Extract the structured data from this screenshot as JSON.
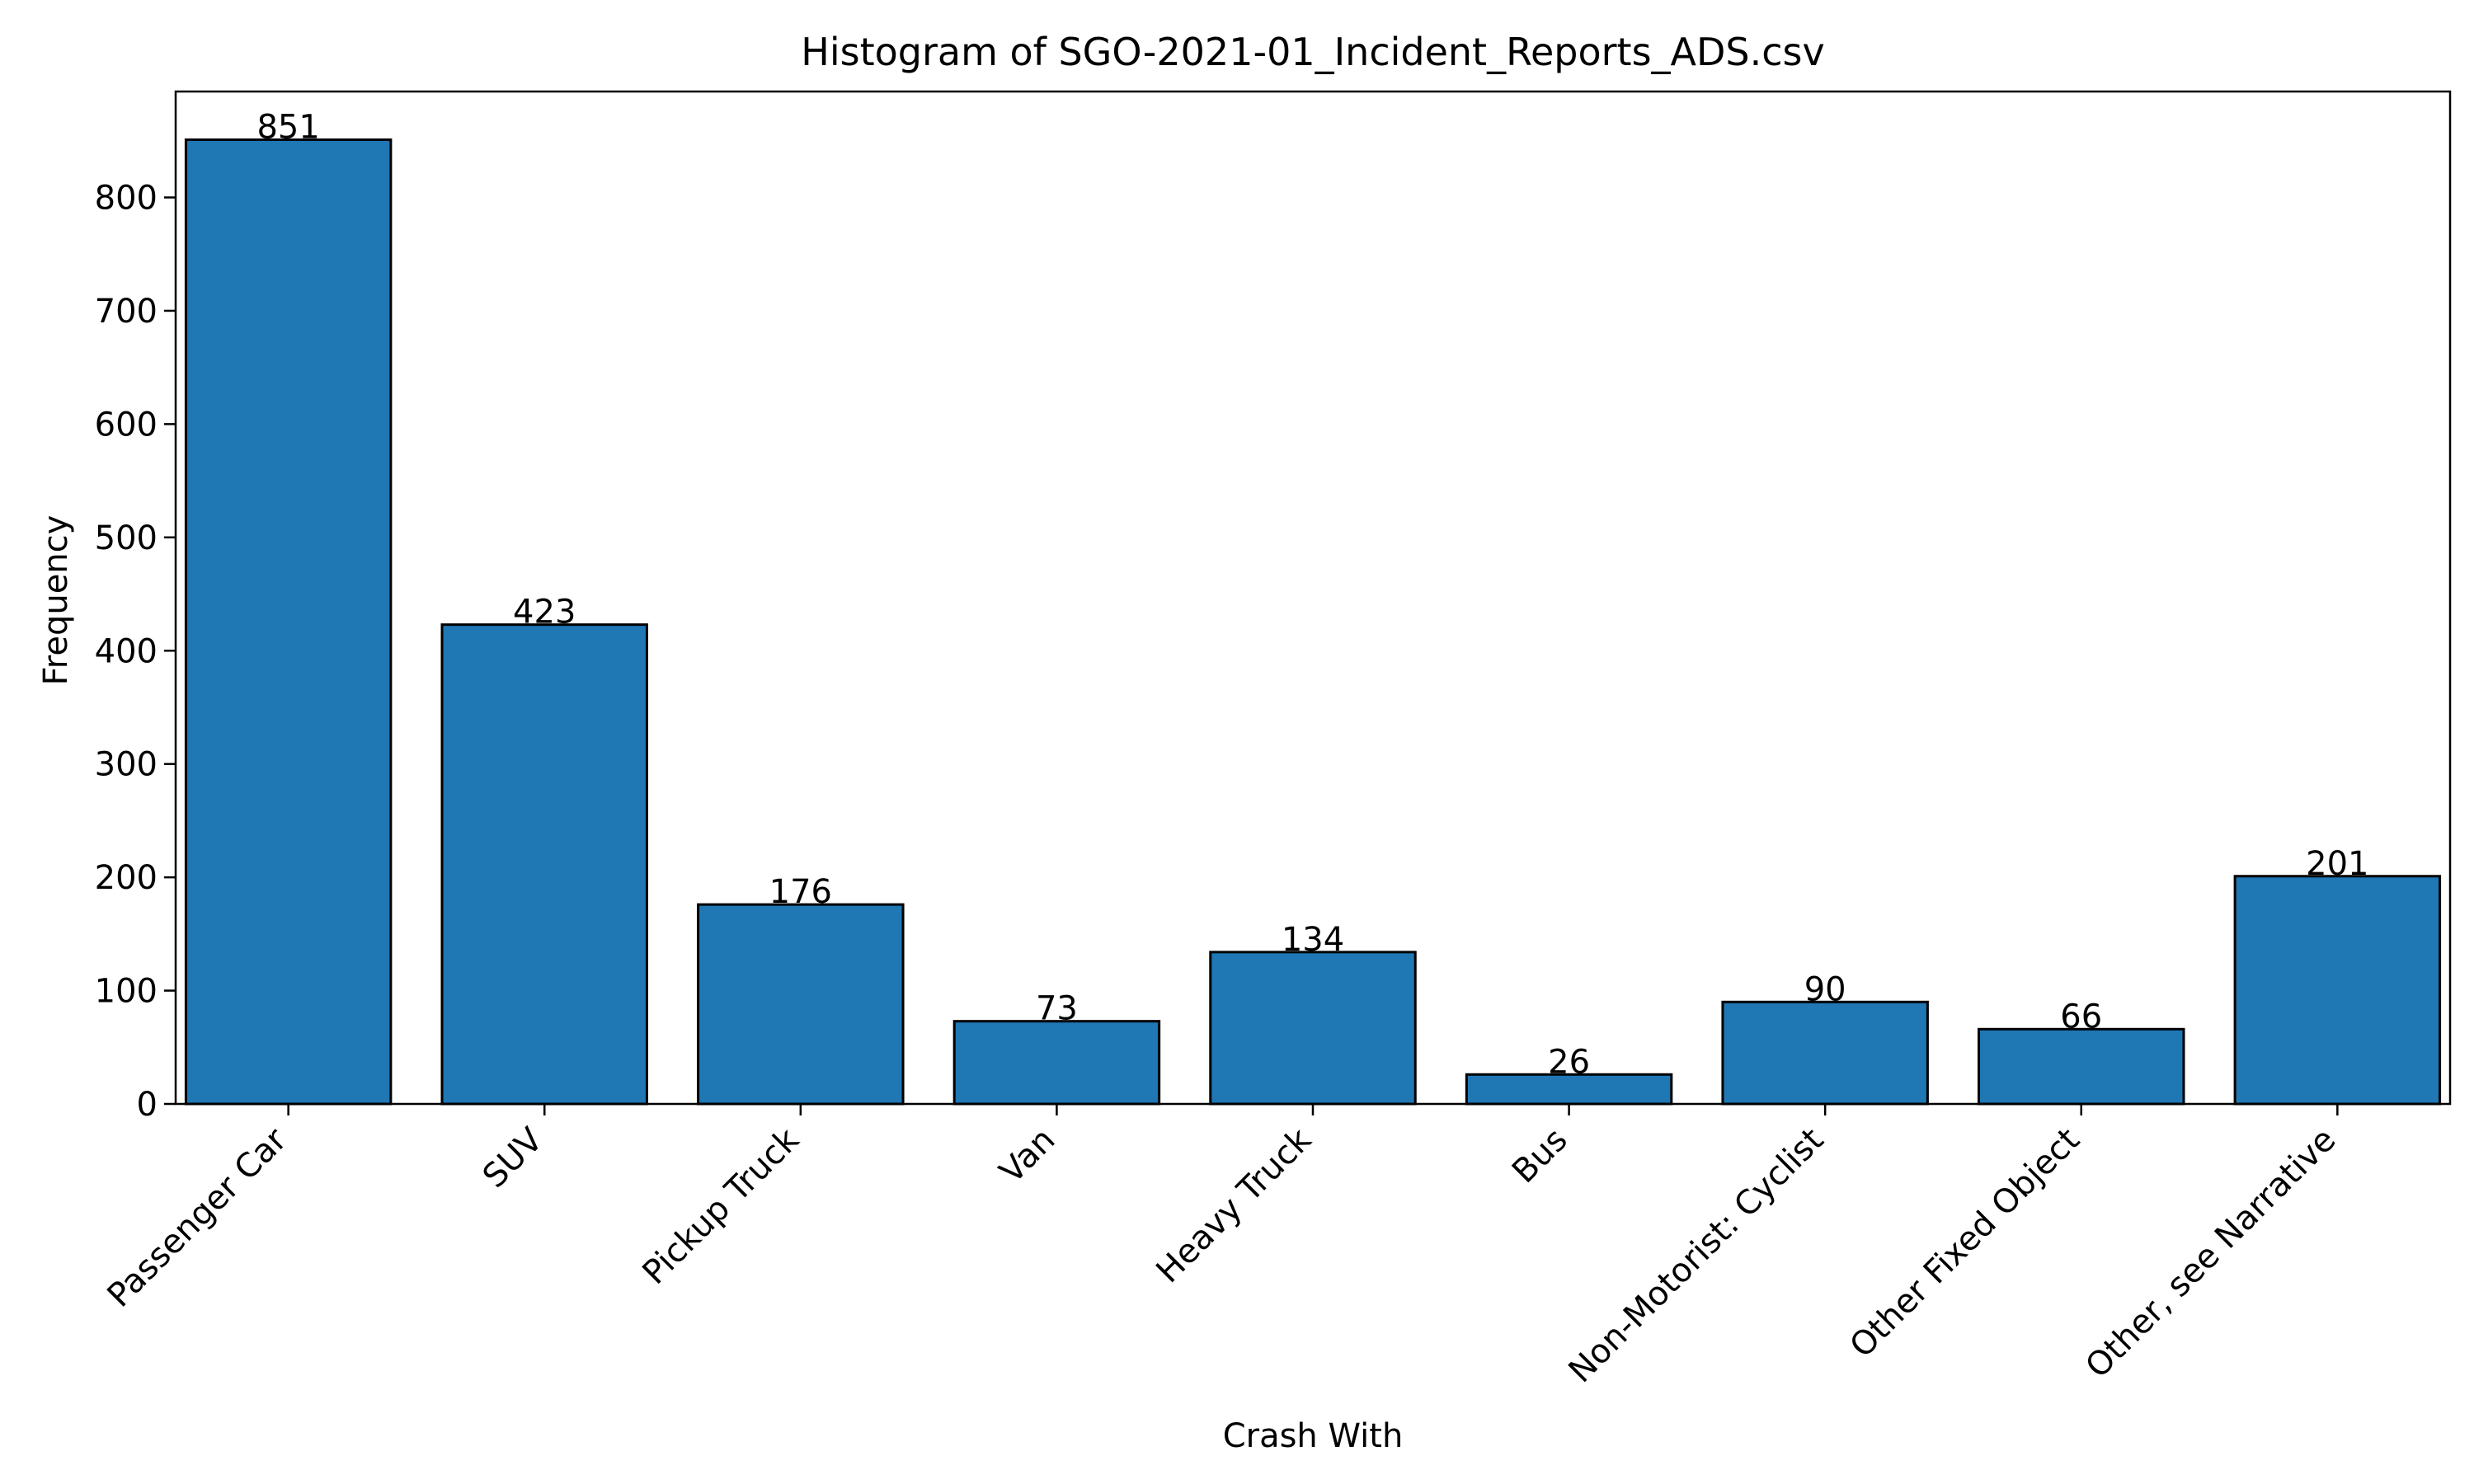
{
  "chart_data": {
    "type": "bar",
    "title": "Histogram of SGO-2021-01_Incident_Reports_ADS.csv",
    "xlabel": "Crash With",
    "ylabel": "Frequency",
    "categories": [
      "Passenger Car",
      "SUV",
      "Pickup Truck",
      "Van",
      "Heavy Truck",
      "Bus",
      "Non-Motorist: Cyclist",
      "Other Fixed Object",
      "Other, see Narrative"
    ],
    "values": [
      851,
      423,
      176,
      73,
      134,
      26,
      90,
      66,
      201
    ],
    "data_labels": [
      "851",
      "423",
      "176",
      "73",
      "134",
      "26",
      "90",
      "66",
      "201"
    ],
    "yticks": [
      0,
      100,
      200,
      300,
      400,
      500,
      600,
      700,
      800
    ],
    "ylim": [
      0,
      893.5
    ],
    "grid": false,
    "legend": "none",
    "colors": {
      "bar_fill": "#1f77b4",
      "bar_edge": "#000000",
      "axes": "#000000",
      "text": "#000000",
      "background": "#ffffff"
    }
  }
}
